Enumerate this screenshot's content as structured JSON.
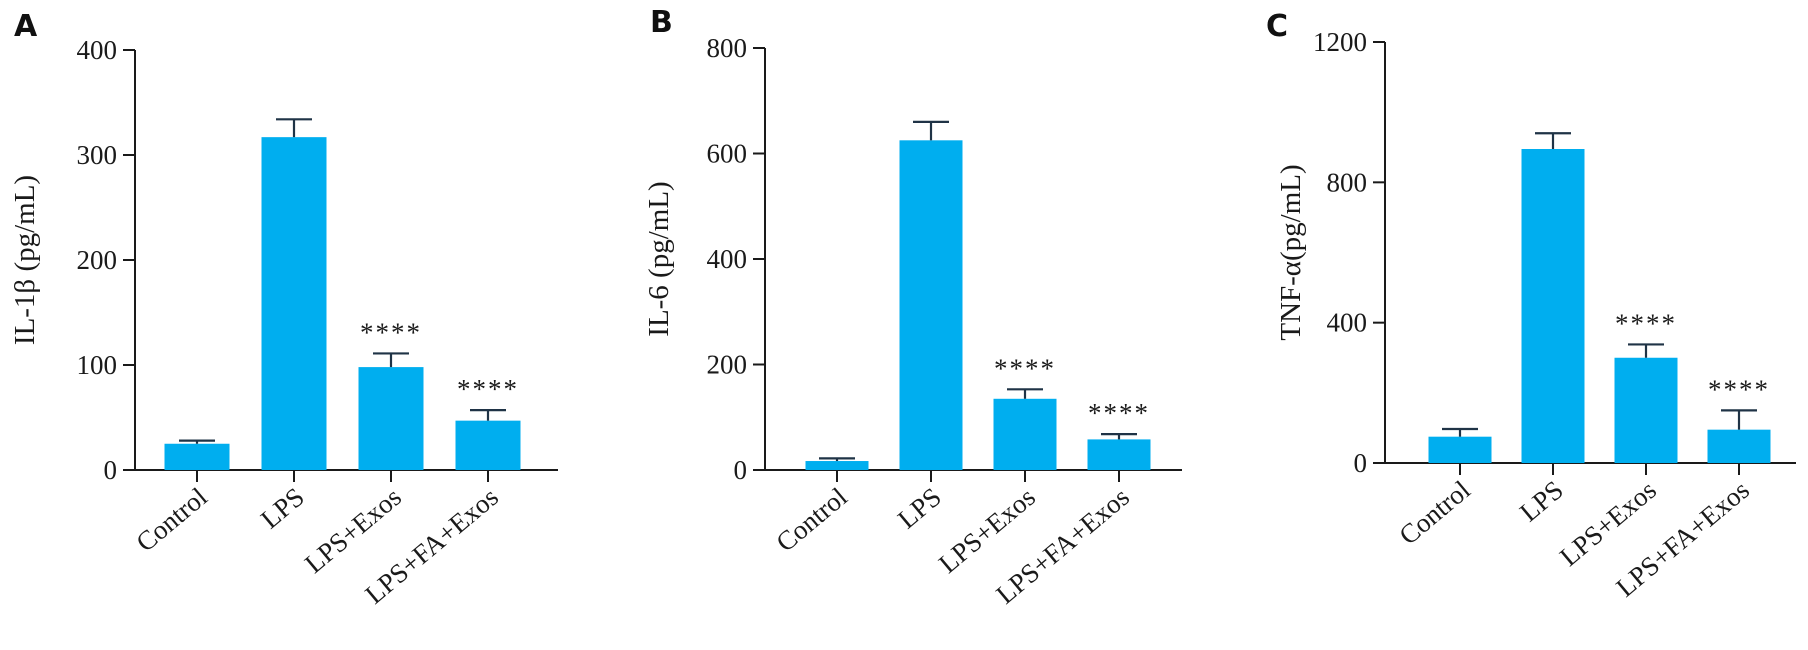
{
  "chart_data": [
    {
      "type": "bar",
      "panel": "A",
      "ylabel": "IL-1β (pg/mL)",
      "categories": [
        "Control",
        "LPS",
        "LPS+Exos",
        "LPS+FA+Exos"
      ],
      "values": [
        25,
        317,
        98,
        47
      ],
      "errors": [
        3,
        17,
        13,
        10
      ],
      "significance": [
        "",
        "",
        "****",
        "****"
      ],
      "ylim": [
        0,
        400
      ],
      "yticks": [
        0,
        100,
        200,
        300,
        400
      ],
      "bar_color": "#00AEEF"
    },
    {
      "type": "bar",
      "panel": "B",
      "ylabel": "IL-6 (pg/mL)",
      "categories": [
        "Control",
        "LPS",
        "LPS+Exos",
        "LPS+FA+Exos"
      ],
      "values": [
        17,
        625,
        135,
        58
      ],
      "errors": [
        5,
        35,
        18,
        10
      ],
      "significance": [
        "",
        "",
        "****",
        "****"
      ],
      "ylim": [
        0,
        800
      ],
      "yticks": [
        0,
        200,
        400,
        600,
        800
      ],
      "bar_color": "#00AEEF"
    },
    {
      "type": "bar",
      "panel": "C",
      "ylabel": "TNF-α(pg/mL)",
      "categories": [
        "Control",
        "LPS",
        "LPS+Exos",
        "LPS+FA+Exos"
      ],
      "values": [
        75,
        895,
        300,
        95
      ],
      "errors": [
        22,
        45,
        38,
        55
      ],
      "significance": [
        "",
        "",
        "****",
        "****"
      ],
      "ylim": [
        0,
        1200
      ],
      "yticks": [
        0,
        400,
        800,
        1200
      ],
      "bar_color": "#00AEEF"
    }
  ]
}
